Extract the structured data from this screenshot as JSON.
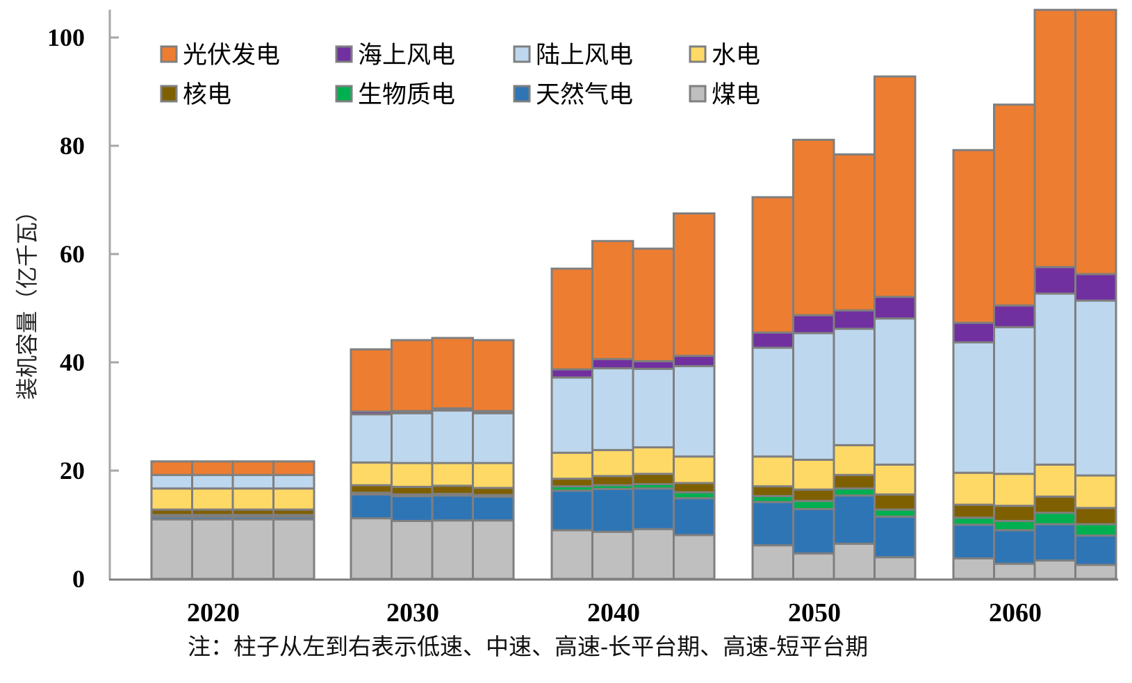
{
  "chart_data": {
    "type": "bar",
    "stacked": true,
    "title": "",
    "xlabel": "",
    "ylabel": "装机容量（亿千瓦）",
    "ylim": [
      0,
      105
    ],
    "yticks": [
      0,
      20,
      40,
      60,
      80,
      100
    ],
    "grid": false,
    "legend_position": "top-left",
    "categories": [
      "2020",
      "2030",
      "2040",
      "2050",
      "2060"
    ],
    "bars_per_category": [
      "低速",
      "中速",
      "高速-长平台期",
      "高速-短平台期"
    ],
    "note": "注：柱子从左到右表示低速、中速、高速-长平台期、高速-短平台期",
    "legend": [
      {
        "name": "光伏发电",
        "color": "#ED7D31"
      },
      {
        "name": "海上风电",
        "color": "#7030A0"
      },
      {
        "name": "陆上风电",
        "color": "#BDD7EE"
      },
      {
        "name": "水电",
        "color": "#FFD966"
      },
      {
        "name": "核电",
        "color": "#7F6000"
      },
      {
        "name": "生物质电",
        "color": "#00B050"
      },
      {
        "name": "天然气电",
        "color": "#2E75B6"
      },
      {
        "name": "煤电",
        "color": "#BFBFBF"
      }
    ],
    "stack_order_bottom_to_top": [
      "煤电",
      "天然气电",
      "生物质电",
      "核电",
      "水电",
      "陆上风电",
      "海上风电",
      "光伏发电"
    ],
    "series": [
      {
        "name": "煤电",
        "color": "#BFBFBF",
        "values": [
          [
            11.0,
            11.0,
            11.0,
            11.0
          ],
          [
            11.2,
            10.7,
            10.8,
            10.8
          ],
          [
            9.0,
            8.7,
            9.2,
            8.1
          ],
          [
            6.2,
            4.7,
            6.5,
            4.0
          ],
          [
            3.8,
            2.8,
            3.4,
            2.6
          ]
        ]
      },
      {
        "name": "天然气电",
        "color": "#2E75B6",
        "values": [
          [
            0.5,
            0.5,
            0.5,
            0.5
          ],
          [
            4.4,
            4.6,
            4.6,
            4.4
          ],
          [
            7.3,
            7.9,
            7.5,
            6.8
          ],
          [
            8.0,
            8.2,
            8.9,
            7.5
          ],
          [
            6.2,
            6.2,
            6.7,
            5.4
          ]
        ]
      },
      {
        "name": "生物质电",
        "color": "#00B050",
        "values": [
          [
            0.3,
            0.3,
            0.3,
            0.3
          ],
          [
            0.3,
            0.3,
            0.3,
            0.3
          ],
          [
            0.8,
            0.7,
            0.8,
            1.1
          ],
          [
            1.1,
            1.5,
            1.3,
            1.3
          ],
          [
            1.3,
            1.7,
            2.1,
            2.1
          ]
        ]
      },
      {
        "name": "核电",
        "color": "#7F6000",
        "values": [
          [
            1.0,
            1.0,
            1.0,
            1.0
          ],
          [
            1.4,
            1.4,
            1.5,
            1.3
          ],
          [
            1.4,
            1.7,
            1.9,
            1.7
          ],
          [
            1.8,
            2.1,
            2.5,
            2.8
          ],
          [
            2.4,
            2.8,
            3.0,
            3.0
          ]
        ]
      },
      {
        "name": "水电",
        "color": "#FFD966",
        "values": [
          [
            3.9,
            3.9,
            3.9,
            3.9
          ],
          [
            4.2,
            4.4,
            4.2,
            4.6
          ],
          [
            4.8,
            4.8,
            4.9,
            4.9
          ],
          [
            5.5,
            5.5,
            5.5,
            5.5
          ],
          [
            5.9,
            5.9,
            5.9,
            6.0
          ]
        ]
      },
      {
        "name": "陆上风电",
        "color": "#BDD7EE",
        "values": [
          [
            2.5,
            2.5,
            2.5,
            2.5
          ],
          [
            8.9,
            9.2,
            9.7,
            9.2
          ],
          [
            13.9,
            15.1,
            14.5,
            16.7
          ],
          [
            20.1,
            23.4,
            21.5,
            27.0
          ],
          [
            24.1,
            27.1,
            31.6,
            32.3
          ]
        ]
      },
      {
        "name": "海上风电",
        "color": "#7030A0",
        "values": [
          [
            0.0,
            0.0,
            0.0,
            0.0
          ],
          [
            0.5,
            0.4,
            0.4,
            0.4
          ],
          [
            1.5,
            1.7,
            1.4,
            1.9
          ],
          [
            2.8,
            3.3,
            3.4,
            4.0
          ],
          [
            3.6,
            4.0,
            4.9,
            4.9
          ]
        ]
      },
      {
        "name": "光伏发电",
        "color": "#ED7D31",
        "values": [
          [
            2.5,
            2.5,
            2.5,
            2.5
          ],
          [
            11.5,
            13.1,
            13.0,
            13.1
          ],
          [
            18.6,
            21.8,
            20.8,
            26.3
          ],
          [
            25.0,
            32.4,
            28.8,
            40.7
          ],
          [
            31.9,
            37.1,
            47.5,
            48.8
          ]
        ]
      }
    ],
    "totals": [
      [
        21.7,
        21.7,
        21.7,
        21.7
      ],
      [
        42.4,
        44.1,
        44.5,
        44.1
      ],
      [
        57.3,
        62.4,
        61.0,
        67.5
      ],
      [
        70.5,
        81.1,
        78.4,
        92.8
      ],
      [
        79.2,
        87.6,
        105.1,
        105.1
      ]
    ],
    "clipped_at_axis_top": [
      [
        4,
        2
      ],
      [
        4,
        3
      ]
    ]
  }
}
